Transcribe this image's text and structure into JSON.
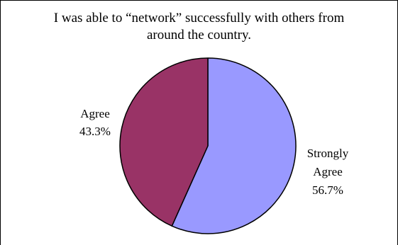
{
  "chart_data": {
    "type": "pie",
    "title": "I was able to “network” successfully with others from around the country.",
    "title_lines": [
      "I was able to “network” successfully with others from",
      "around the country."
    ],
    "slices": [
      {
        "label": "Strongly Agree",
        "label_lines": [
          "Strongly",
          "Agree"
        ],
        "value": 56.7,
        "display": "56.7%",
        "color": "#9999ff"
      },
      {
        "label": "Agree",
        "label_lines": [
          "Agree"
        ],
        "value": 43.3,
        "display": "43.3%",
        "color": "#993366"
      }
    ]
  }
}
